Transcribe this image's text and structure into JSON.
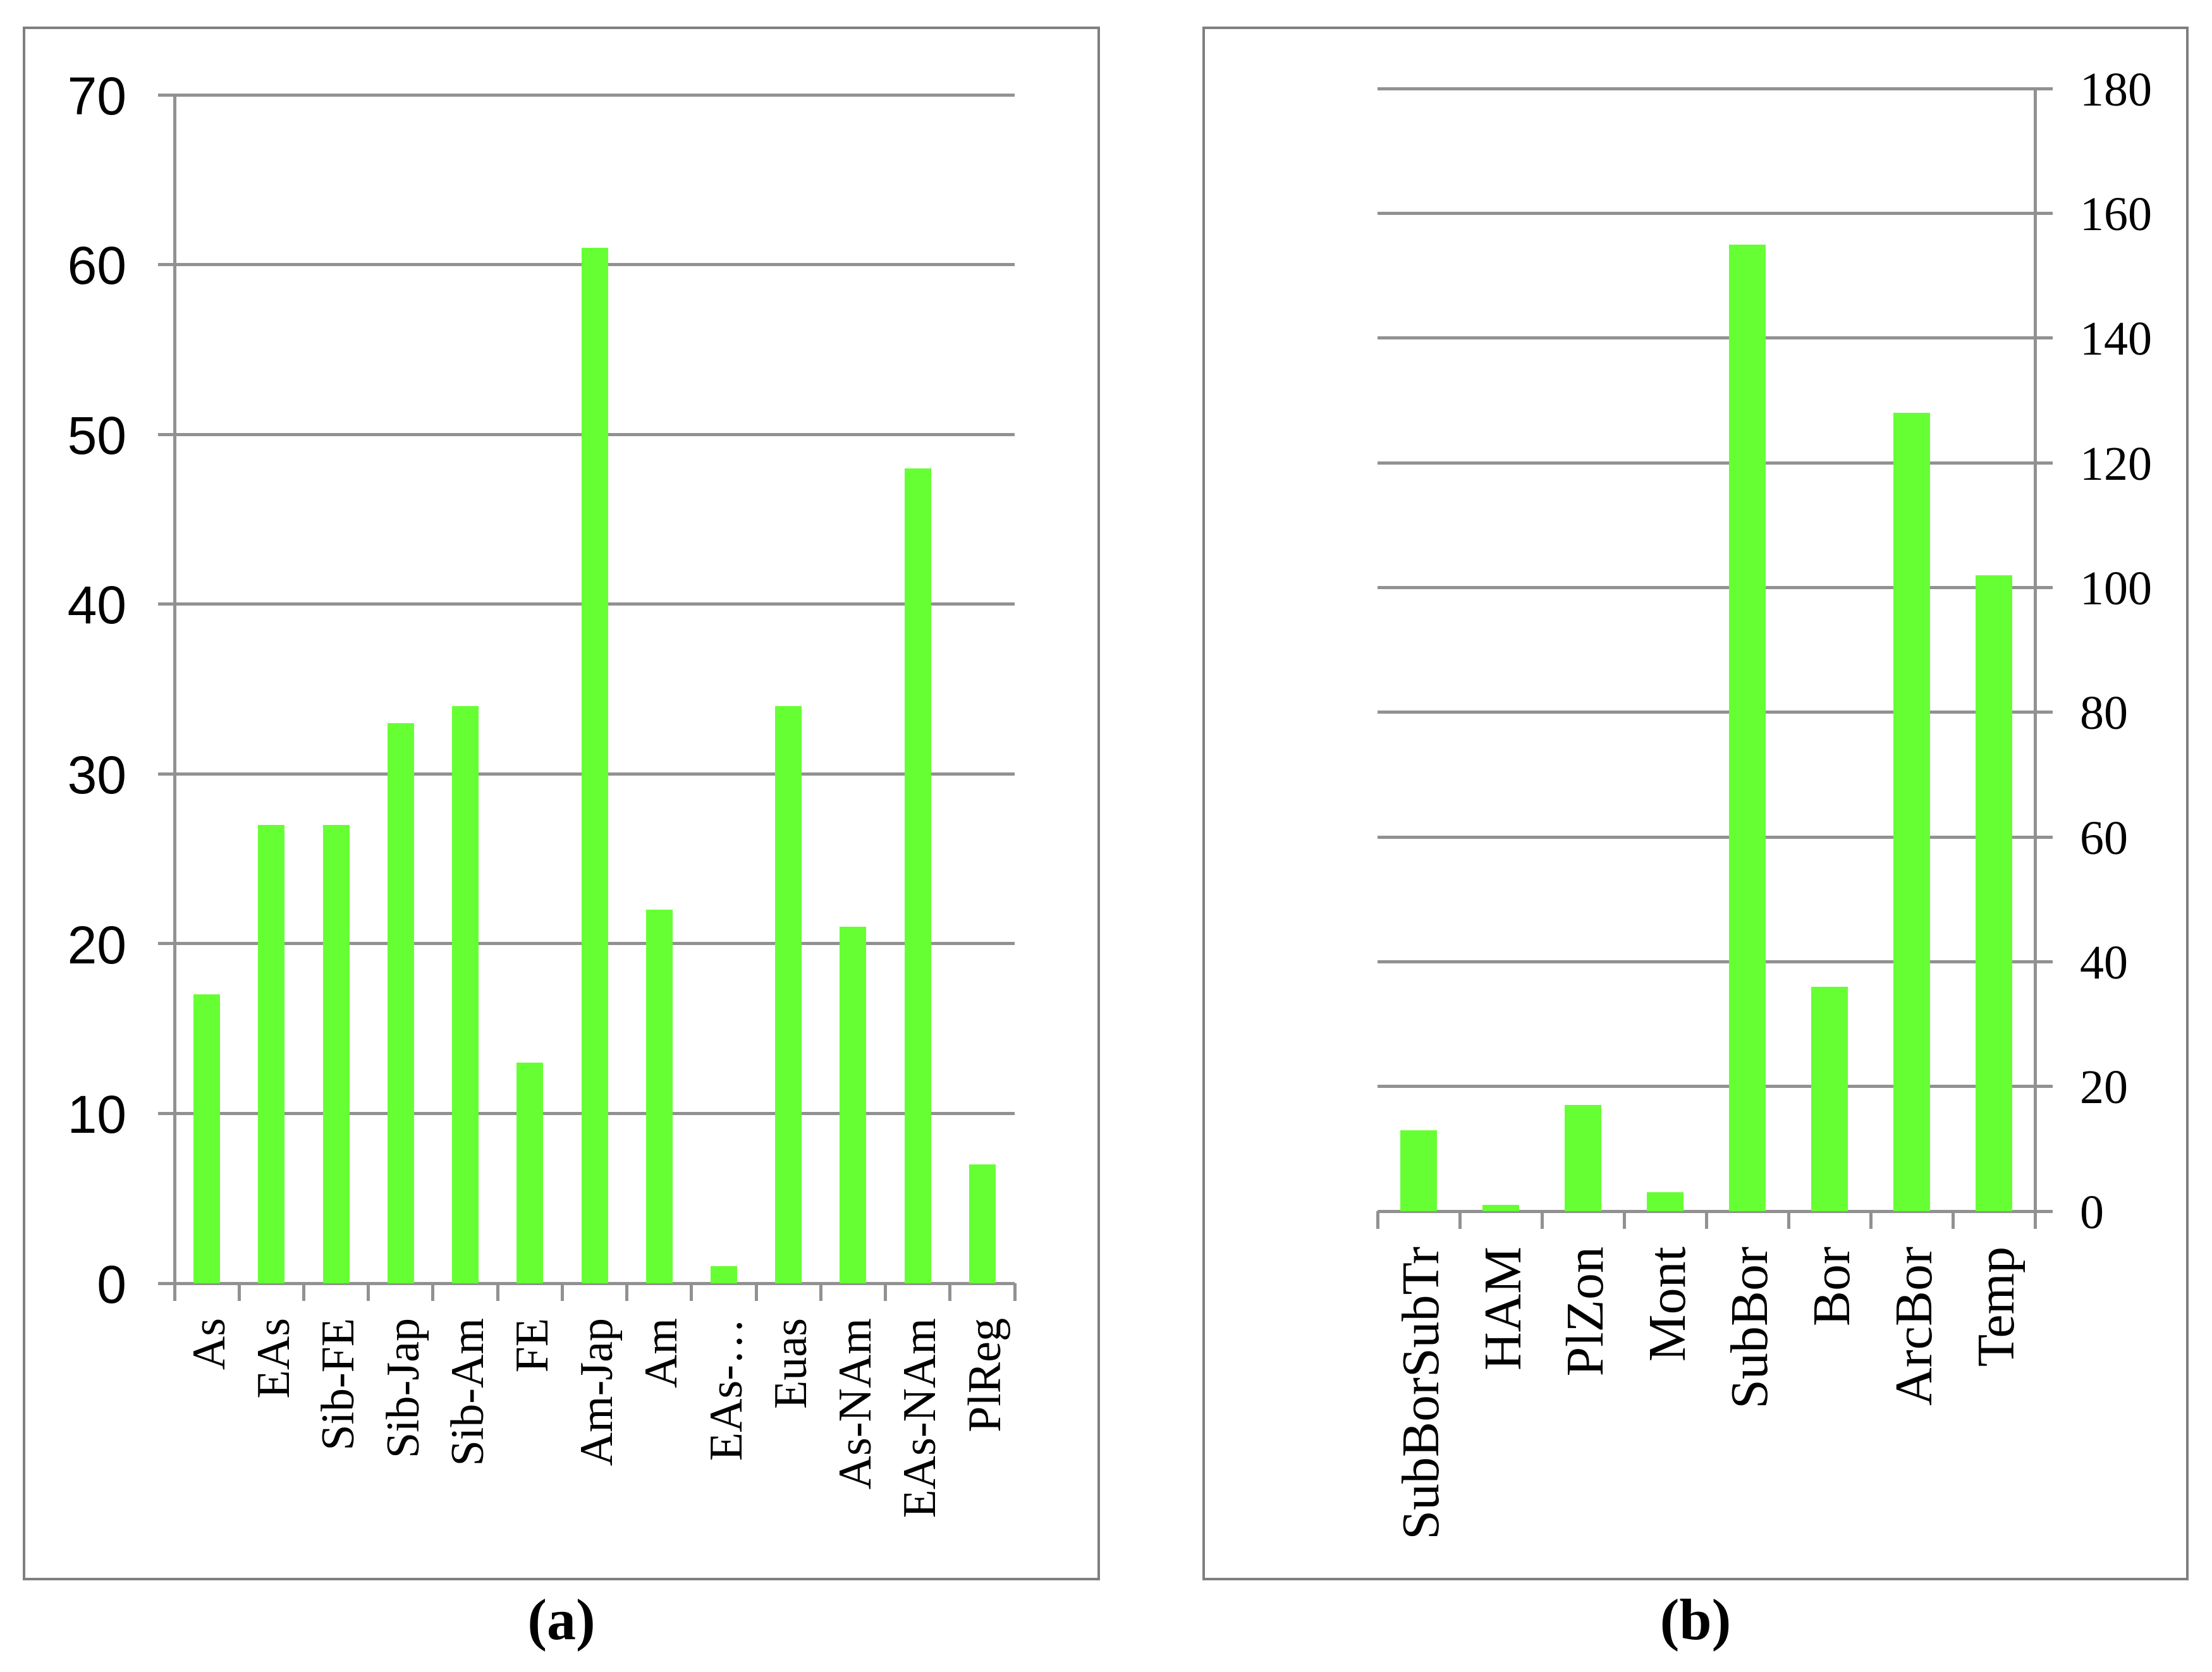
{
  "figure": {
    "caption_a": "(a)",
    "caption_b": "(b)"
  },
  "colors": {
    "bar_green": "#66FF33",
    "grid_gray": "#919191",
    "box_border_gray": "#7f7f7f",
    "text_black": "#000000"
  },
  "chart_data": [
    {
      "panel": "a",
      "type": "bar",
      "title": "",
      "categories": [
        "As",
        "EAs",
        "Sib-FE",
        "Sib-Jap",
        "Sib-Am",
        "FE",
        "Am-Jap",
        "Am",
        "EAs-…",
        "Euas",
        "As-NAm",
        "EAs-NAm",
        "PlReg"
      ],
      "values": [
        17,
        27,
        27,
        33,
        34,
        13,
        61,
        22,
        1,
        34,
        21,
        48,
        7
      ],
      "xlabel": "",
      "ylabel": "",
      "ylim": [
        0,
        70
      ],
      "ytick_step": 10,
      "ytick_labels": [
        "0",
        "10",
        "20",
        "30",
        "40",
        "50",
        "60",
        "70"
      ],
      "y_axis_side": "left",
      "grid": true,
      "legend": "none",
      "bar_color": "#66FF33",
      "caption": "(a)"
    },
    {
      "panel": "b",
      "type": "bar",
      "title": "",
      "categories": [
        "SubBorSubTr",
        "HAM",
        "PlZon",
        "Mont",
        "SubBor",
        "Bor",
        "ArcBor",
        "Temp"
      ],
      "values": [
        13,
        1,
        17,
        3,
        155,
        36,
        128,
        102
      ],
      "xlabel": "",
      "ylabel": "",
      "ylim": [
        0,
        180
      ],
      "ytick_step": 20,
      "ytick_labels": [
        "0",
        "20",
        "40",
        "60",
        "80",
        "100",
        "120",
        "140",
        "160",
        "180"
      ],
      "y_axis_side": "right",
      "grid": true,
      "legend": "none",
      "bar_color": "#66FF33",
      "caption": "(b)"
    }
  ]
}
